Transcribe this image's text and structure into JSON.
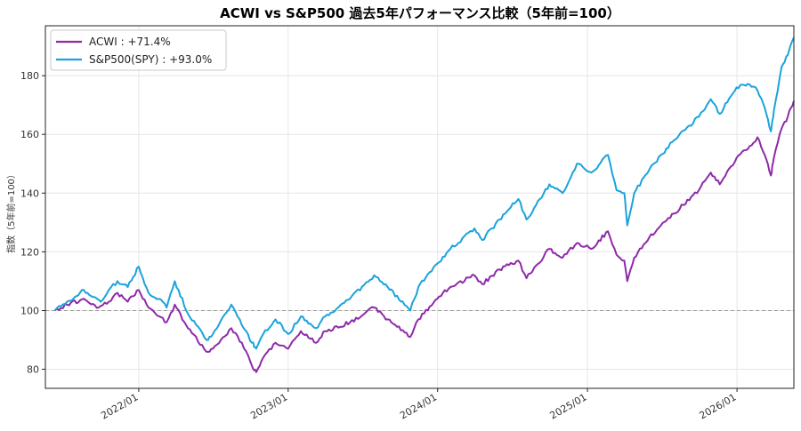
{
  "chart_data": {
    "type": "line",
    "title": "ACWI vs S&P500 過去5年パフォーマンス比較（5年前=100）",
    "xlabel": "",
    "ylabel": "指数（5年前=100）",
    "x_range": [
      "2021-05-18",
      "2026-05-20"
    ],
    "ylim": [
      73.5,
      197
    ],
    "yticks": [
      80,
      100,
      120,
      140,
      160,
      180
    ],
    "xticks": [
      {
        "date": "2022-01-01",
        "label": "2022/01"
      },
      {
        "date": "2023-01-01",
        "label": "2023/01"
      },
      {
        "date": "2024-01-01",
        "label": "2024/01"
      },
      {
        "date": "2025-01-01",
        "label": "2025/01"
      },
      {
        "date": "2026-01-01",
        "label": "2026/01"
      }
    ],
    "reference_line": {
      "y": 100,
      "style": "dashed",
      "color": "#9a9a9a"
    },
    "grid": true,
    "legend_position": "top-left",
    "series": [
      {
        "name": "ACWI : +71.4%",
        "color": "#8e2aa8",
        "points": [
          [
            "2021-06-10",
            100
          ],
          [
            "2021-07-10",
            102
          ],
          [
            "2021-08-20",
            104
          ],
          [
            "2021-09-25",
            101
          ],
          [
            "2021-10-20",
            103
          ],
          [
            "2021-11-10",
            106
          ],
          [
            "2021-12-05",
            103
          ],
          [
            "2022-01-01",
            107
          ],
          [
            "2022-01-25",
            101
          ],
          [
            "2022-02-20",
            98
          ],
          [
            "2022-03-10",
            96
          ],
          [
            "2022-03-30",
            102
          ],
          [
            "2022-05-01",
            94
          ],
          [
            "2022-06-15",
            86
          ],
          [
            "2022-07-01",
            87
          ],
          [
            "2022-08-15",
            94
          ],
          [
            "2022-09-10",
            89
          ],
          [
            "2022-10-05",
            81
          ],
          [
            "2022-10-15",
            79
          ],
          [
            "2022-11-01",
            84
          ],
          [
            "2022-12-01",
            89
          ],
          [
            "2023-01-01",
            87
          ],
          [
            "2023-02-01",
            93
          ],
          [
            "2023-03-10",
            89
          ],
          [
            "2023-04-01",
            93
          ],
          [
            "2023-06-01",
            96
          ],
          [
            "2023-07-30",
            101
          ],
          [
            "2023-09-01",
            97
          ],
          [
            "2023-10-26",
            91
          ],
          [
            "2023-11-15",
            97
          ],
          [
            "2023-12-31",
            104
          ],
          [
            "2024-02-01",
            108
          ],
          [
            "2024-03-31",
            112
          ],
          [
            "2024-04-19",
            109
          ],
          [
            "2024-05-31",
            114
          ],
          [
            "2024-07-16",
            117
          ],
          [
            "2024-08-05",
            111
          ],
          [
            "2024-09-30",
            121
          ],
          [
            "2024-11-01",
            118
          ],
          [
            "2024-12-06",
            123
          ],
          [
            "2025-01-10",
            121
          ],
          [
            "2025-02-20",
            127
          ],
          [
            "2025-03-13",
            119
          ],
          [
            "2025-04-01",
            117
          ],
          [
            "2025-04-08",
            110
          ],
          [
            "2025-04-25",
            118
          ],
          [
            "2025-06-01",
            125
          ],
          [
            "2025-07-31",
            133
          ],
          [
            "2025-09-30",
            141
          ],
          [
            "2025-10-29",
            147
          ],
          [
            "2025-11-20",
            143
          ],
          [
            "2025-12-31",
            152
          ],
          [
            "2026-02-01",
            156
          ],
          [
            "2026-02-20",
            159
          ],
          [
            "2026-03-10",
            153
          ],
          [
            "2026-03-25",
            146
          ],
          [
            "2026-04-01",
            152
          ],
          [
            "2026-04-20",
            162
          ],
          [
            "2026-05-05",
            166
          ],
          [
            "2026-05-20",
            171.4
          ]
        ]
      },
      {
        "name": "S&P500(SPY) : +93.0%",
        "color": "#1aa3dc",
        "points": [
          [
            "2021-06-10",
            100
          ],
          [
            "2021-07-10",
            103
          ],
          [
            "2021-08-20",
            107
          ],
          [
            "2021-09-30",
            103
          ],
          [
            "2021-10-20",
            107
          ],
          [
            "2021-11-10",
            110
          ],
          [
            "2021-12-05",
            108
          ],
          [
            "2022-01-01",
            115
          ],
          [
            "2022-01-25",
            106
          ],
          [
            "2022-02-20",
            104
          ],
          [
            "2022-03-10",
            101
          ],
          [
            "2022-03-30",
            110
          ],
          [
            "2022-05-01",
            99
          ],
          [
            "2022-06-15",
            90
          ],
          [
            "2022-07-01",
            92
          ],
          [
            "2022-08-15",
            102
          ],
          [
            "2022-09-10",
            95
          ],
          [
            "2022-10-05",
            89
          ],
          [
            "2022-10-15",
            87
          ],
          [
            "2022-11-01",
            92
          ],
          [
            "2022-12-01",
            97
          ],
          [
            "2023-01-01",
            92
          ],
          [
            "2023-02-01",
            98
          ],
          [
            "2023-03-10",
            94
          ],
          [
            "2023-04-01",
            98
          ],
          [
            "2023-06-01",
            104
          ],
          [
            "2023-07-30",
            112
          ],
          [
            "2023-09-01",
            108
          ],
          [
            "2023-10-26",
            100
          ],
          [
            "2023-11-15",
            108
          ],
          [
            "2023-12-31",
            116
          ],
          [
            "2024-02-01",
            121
          ],
          [
            "2024-03-31",
            128
          ],
          [
            "2024-04-19",
            124
          ],
          [
            "2024-05-31",
            131
          ],
          [
            "2024-07-16",
            138
          ],
          [
            "2024-08-05",
            131
          ],
          [
            "2024-09-30",
            143
          ],
          [
            "2024-11-01",
            140
          ],
          [
            "2024-12-06",
            150
          ],
          [
            "2025-01-10",
            147
          ],
          [
            "2025-02-20",
            153
          ],
          [
            "2025-03-13",
            141
          ],
          [
            "2025-04-01",
            140
          ],
          [
            "2025-04-08",
            129
          ],
          [
            "2025-04-25",
            140
          ],
          [
            "2025-06-01",
            148
          ],
          [
            "2025-07-31",
            158
          ],
          [
            "2025-09-30",
            166
          ],
          [
            "2025-10-29",
            172
          ],
          [
            "2025-11-20",
            167
          ],
          [
            "2025-12-31",
            176
          ],
          [
            "2026-02-01",
            177
          ],
          [
            "2026-02-20",
            175
          ],
          [
            "2026-03-10",
            169
          ],
          [
            "2026-03-25",
            161
          ],
          [
            "2026-04-01",
            168
          ],
          [
            "2026-04-20",
            183
          ],
          [
            "2026-05-05",
            187
          ],
          [
            "2026-05-20",
            193
          ]
        ]
      }
    ]
  }
}
